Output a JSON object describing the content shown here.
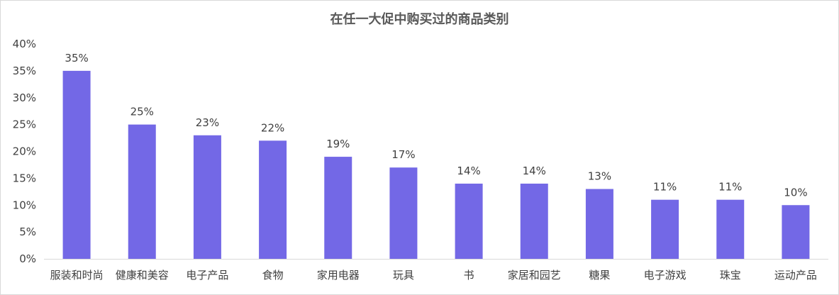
{
  "chart_data": {
    "type": "bar",
    "title": "在任一大促中购买过的商品类别",
    "categories": [
      "服装和时尚",
      "健康和美容",
      "电子产品",
      "食物",
      "家用电器",
      "玩具",
      "书",
      "家居和园艺",
      "糖果",
      "电子游戏",
      "珠宝",
      "运动产品"
    ],
    "values": [
      35,
      25,
      23,
      22,
      19,
      17,
      14,
      14,
      13,
      11,
      11,
      10
    ],
    "value_labels": [
      "35%",
      "25%",
      "23%",
      "22%",
      "19%",
      "17%",
      "14%",
      "14%",
      "13%",
      "11%",
      "11%",
      "10%"
    ],
    "y_ticks": [
      "0%",
      "5%",
      "10%",
      "15%",
      "20%",
      "25%",
      "30%",
      "35%",
      "40%"
    ],
    "ylim": [
      0,
      40
    ],
    "xlabel": "",
    "ylabel": "",
    "grid": false,
    "legend": "none",
    "bar_color": "#7368E6"
  }
}
